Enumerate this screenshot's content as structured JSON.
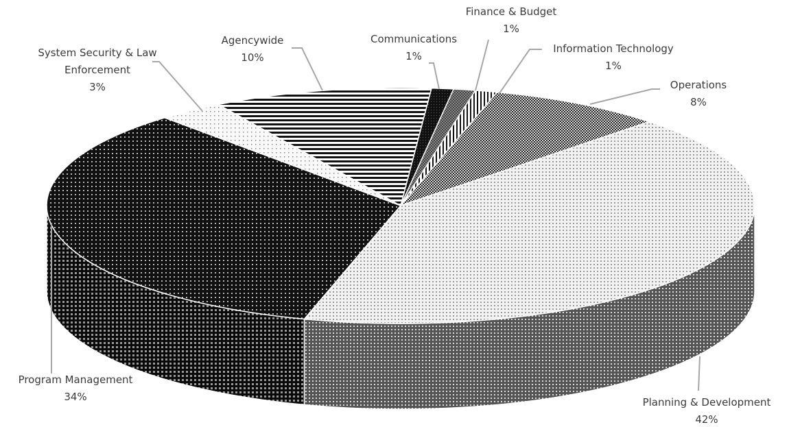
{
  "chart_data": {
    "type": "pie3d",
    "categories": [
      "Communications",
      "Finance & Budget",
      "Information Technology",
      "Operations",
      "Planning & Development",
      "Program Management",
      "System Security & Law Enforcement",
      "Agencywide"
    ],
    "values": [
      1,
      1,
      1,
      8,
      42,
      34,
      3,
      10
    ],
    "value_labels": [
      "1%",
      "1%",
      "1%",
      "8%",
      "42%",
      "34%",
      "3%",
      "10%"
    ]
  }
}
